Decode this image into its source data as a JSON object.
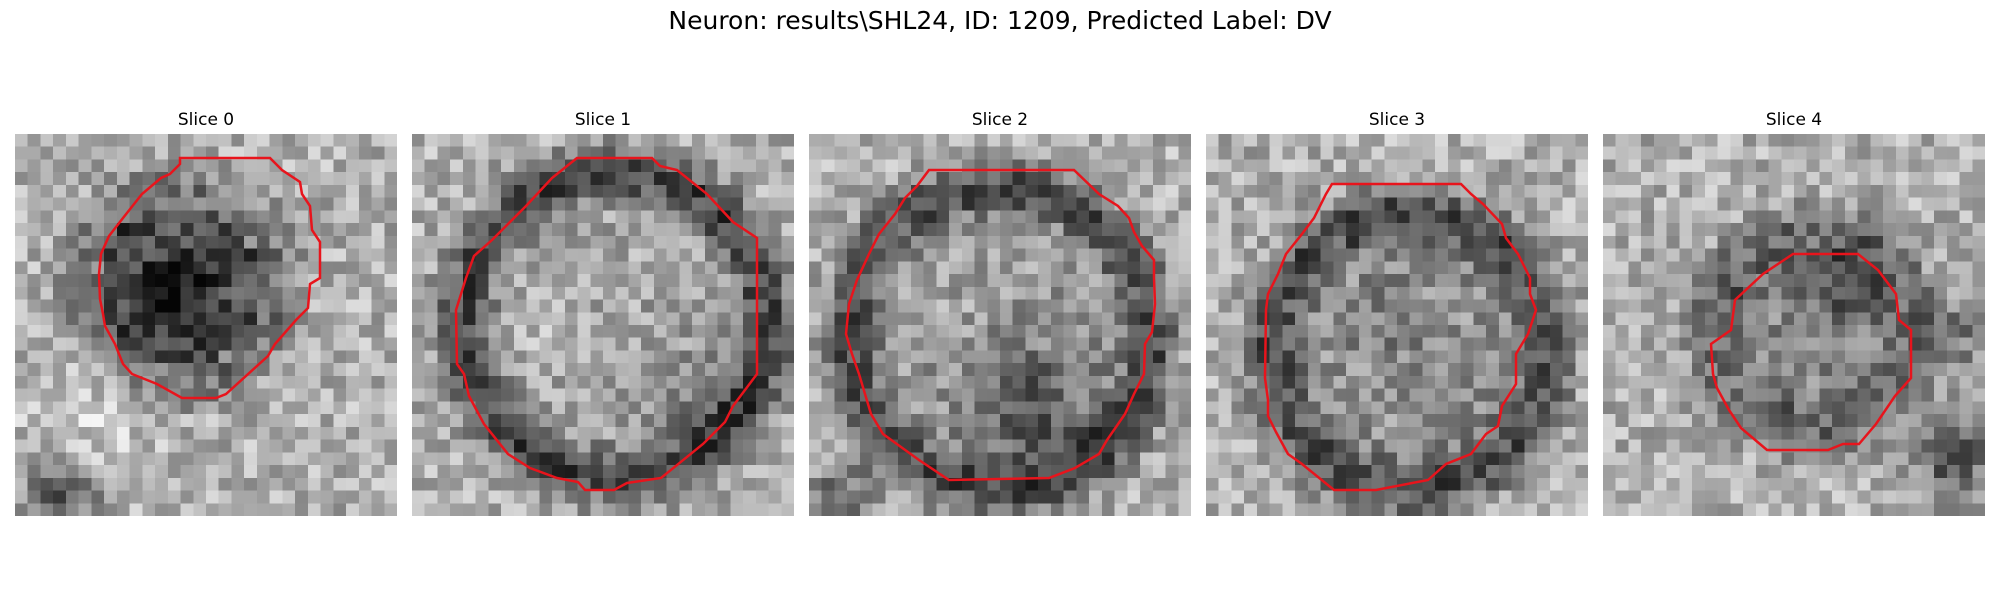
{
  "figure": {
    "title": "Neuron: results\\SHL24, ID: 1209, Predicted Label: DV"
  },
  "slices": [
    {
      "title": "Slice 0"
    },
    {
      "title": "Slice 1"
    },
    {
      "title": "Slice 2"
    },
    {
      "title": "Slice 3"
    },
    {
      "title": "Slice 4"
    }
  ],
  "colors": {
    "outline": "#e8141c",
    "colormap": "gray"
  }
}
